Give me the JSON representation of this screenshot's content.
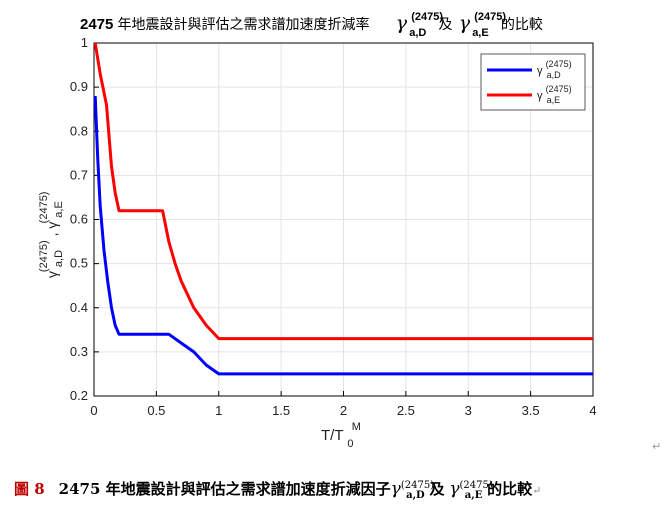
{
  "chart_data": {
    "type": "line",
    "title_prefix": "2475",
    "title_text": "年地震設計與評估之需求譜加速度折減率",
    "title_connector": "及",
    "title_suffix": "的比較",
    "gamma_symbol": "γ",
    "sup": "(2475)",
    "sub_D": "a,D",
    "sub_E": "a,E",
    "xlabel": "T/T",
    "xlabel_sub": "0",
    "xlabel_sup": "M",
    "ylabel_sep": ", ",
    "xlim": [
      0,
      4
    ],
    "ylim": [
      0.2,
      1
    ],
    "xticks": [
      0,
      0.5,
      1,
      1.5,
      2,
      2.5,
      3,
      3.5,
      4
    ],
    "xtick_labels": [
      "0",
      "0.5",
      "1",
      "1.5",
      "2",
      "2.5",
      "3",
      "3.5",
      "4"
    ],
    "yticks": [
      0.2,
      0.3,
      0.4,
      0.5,
      0.6,
      0.7,
      0.8,
      0.9,
      1
    ],
    "ytick_labels": [
      "0.2",
      "0.3",
      "0.4",
      "0.5",
      "0.6",
      "0.7",
      "0.8",
      "0.9",
      "1"
    ],
    "grid": true,
    "legend_position": "top-right",
    "series": [
      {
        "name": "γ(2475) a,D",
        "color": "#0000ff",
        "x": [
          0.01,
          0.03,
          0.05,
          0.08,
          0.11,
          0.14,
          0.17,
          0.2,
          0.3,
          0.4,
          0.5,
          0.6,
          0.7,
          0.8,
          0.9,
          1.0,
          2.0,
          3.0,
          4.0
        ],
        "y": [
          0.88,
          0.74,
          0.63,
          0.53,
          0.46,
          0.4,
          0.36,
          0.34,
          0.34,
          0.34,
          0.34,
          0.34,
          0.32,
          0.3,
          0.27,
          0.25,
          0.25,
          0.25,
          0.25
        ]
      },
      {
        "name": "γ(2475) a,E",
        "color": "#ff0000",
        "x": [
          0.01,
          0.05,
          0.1,
          0.12,
          0.14,
          0.17,
          0.2,
          0.3,
          0.4,
          0.5,
          0.55,
          0.6,
          0.65,
          0.7,
          0.8,
          0.9,
          1.0,
          2.0,
          3.0,
          4.0
        ],
        "y": [
          1.0,
          0.93,
          0.86,
          0.79,
          0.72,
          0.66,
          0.62,
          0.62,
          0.62,
          0.62,
          0.62,
          0.55,
          0.5,
          0.46,
          0.4,
          0.36,
          0.33,
          0.33,
          0.33,
          0.33
        ]
      }
    ]
  },
  "caption": {
    "label": "圖 8",
    "text": "2475 年地震設計與評估之需求譜加速度折減因子",
    "connector": "及",
    "suffix": "的比較",
    "gamma": "γ",
    "sup": "(2475)",
    "sub_D": "a,D",
    "sub_E": "a,E",
    "return_mark": "↵"
  },
  "colors": {
    "axis": "#000000",
    "grid": "#e3e3e3",
    "caption_label": "#c00000"
  }
}
